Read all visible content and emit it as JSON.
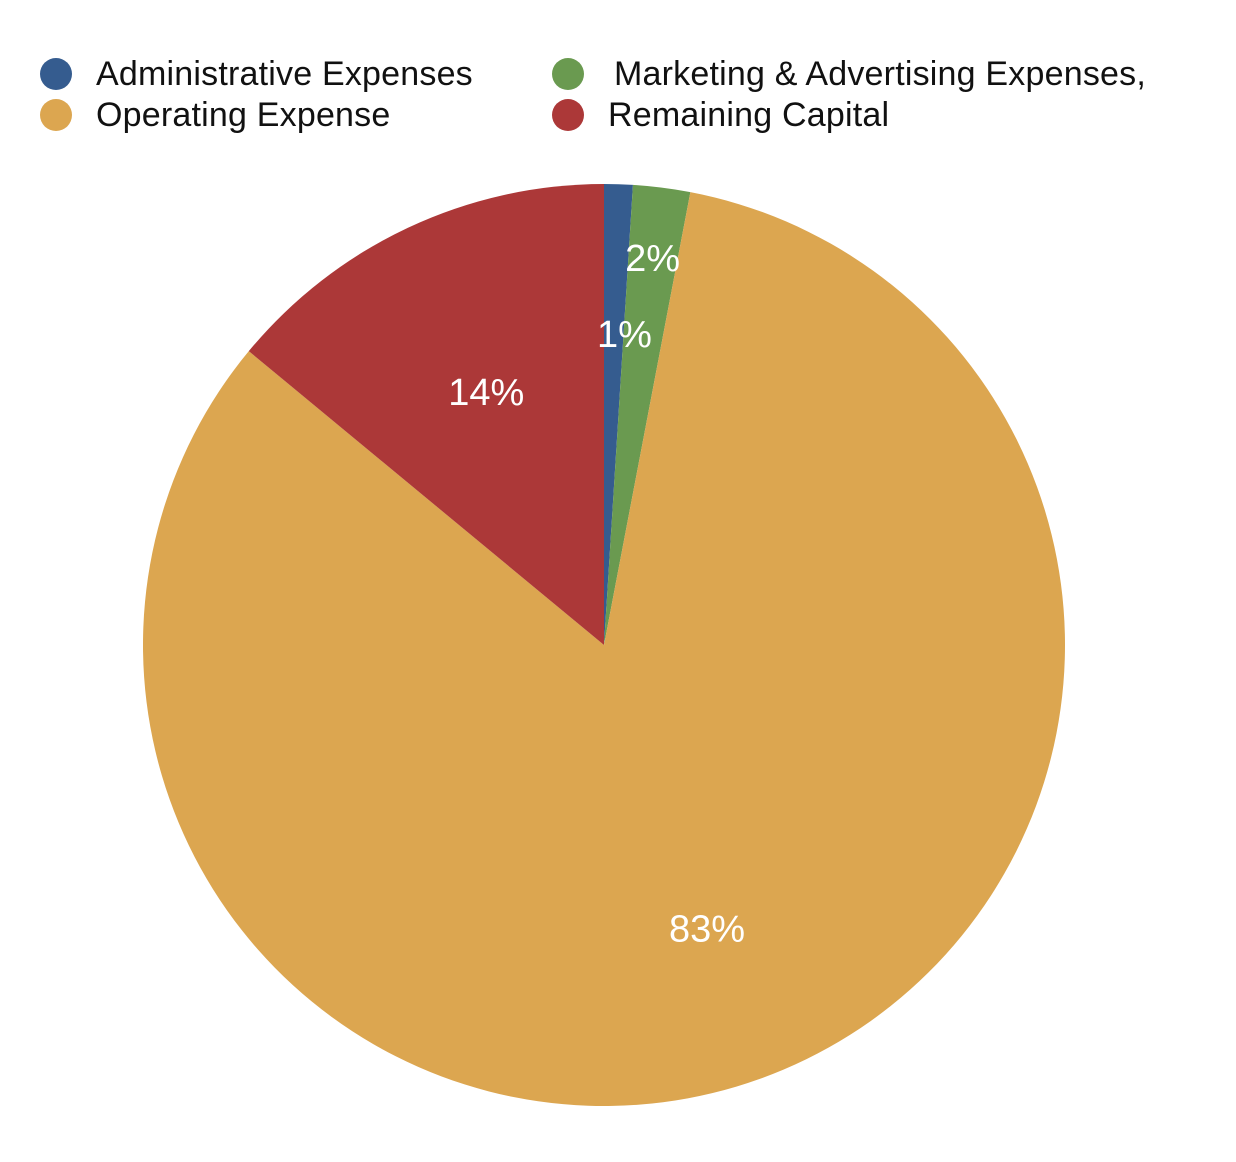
{
  "chart_data": {
    "type": "pie",
    "title": "",
    "legend_position": "top",
    "slices": [
      {
        "name": "Administrative Expenses",
        "value": 1,
        "label": "1%",
        "color": "#355C8F"
      },
      {
        "name": "Marketing & Advertising Expenses,",
        "value": 2,
        "label": "2%",
        "color": "#6A9A50"
      },
      {
        "name": "Operating Expense",
        "value": 83,
        "label": "83%",
        "color": "#DCA650"
      },
      {
        "name": "Remaining Capital",
        "value": 14,
        "label": "14%",
        "color": "#AC3838"
      }
    ]
  }
}
